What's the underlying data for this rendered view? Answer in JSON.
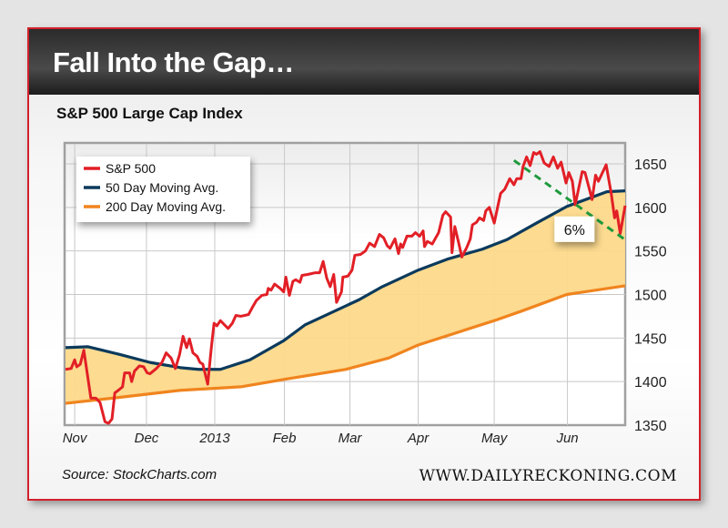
{
  "header": {
    "title": "Fall Into the Gap…"
  },
  "subtitle": "S&P 500 Large Cap Index",
  "footer": {
    "source": "Source: StockCharts.com",
    "brand": "WWW.DAILYRECKONING.COM"
  },
  "colors": {
    "sp500": "#e21f26",
    "ma50": "#0b3a5c",
    "ma200": "#f0841e",
    "gap_fill": "#fdd98a",
    "trend": "#1e9a3c"
  },
  "chart_data": {
    "type": "line",
    "title": "S&P 500 Large Cap Index",
    "xlabel": "",
    "ylabel": "",
    "x_units": "months since Nov 1, 2012",
    "xlim": [
      -0.13,
      7.82
    ],
    "ylim": [
      1350,
      1673
    ],
    "grid": true,
    "legend_position": "top-left",
    "x_ticks": [
      {
        "x": 0,
        "label": "Nov"
      },
      {
        "x": 1.02,
        "label": "Dec"
      },
      {
        "x": 1.99,
        "label": "2013"
      },
      {
        "x": 2.98,
        "label": "Feb"
      },
      {
        "x": 3.91,
        "label": "Mar"
      },
      {
        "x": 4.88,
        "label": "Apr"
      },
      {
        "x": 5.96,
        "label": "May"
      },
      {
        "x": 7,
        "label": "Jun"
      }
    ],
    "y_ticks": [
      1350,
      1400,
      1450,
      1500,
      1550,
      1600,
      1650
    ],
    "series": [
      {
        "name": "S&P 500",
        "color": "#e21f26",
        "points": [
          [
            -0.13,
            1414
          ],
          [
            -0.05,
            1415
          ],
          [
            0,
            1425
          ],
          [
            0.03,
            1417
          ],
          [
            0.08,
            1420
          ],
          [
            0.13,
            1436
          ],
          [
            0.23,
            1381
          ],
          [
            0.3,
            1381
          ],
          [
            0.36,
            1376
          ],
          [
            0.43,
            1354
          ],
          [
            0.48,
            1352
          ],
          [
            0.53,
            1357
          ],
          [
            0.57,
            1387
          ],
          [
            0.62,
            1390
          ],
          [
            0.68,
            1394
          ],
          [
            0.71,
            1410
          ],
          [
            0.78,
            1410
          ],
          [
            0.81,
            1400
          ],
          [
            0.85,
            1412
          ],
          [
            0.92,
            1418
          ],
          [
            0.98,
            1417
          ],
          [
            1.03,
            1410
          ],
          [
            1.07,
            1409
          ],
          [
            1.16,
            1415
          ],
          [
            1.24,
            1422
          ],
          [
            1.3,
            1433
          ],
          [
            1.37,
            1427
          ],
          [
            1.43,
            1415
          ],
          [
            1.49,
            1431
          ],
          [
            1.54,
            1452
          ],
          [
            1.59,
            1439
          ],
          [
            1.63,
            1449
          ],
          [
            1.68,
            1433
          ],
          [
            1.74,
            1429
          ],
          [
            1.78,
            1422
          ],
          [
            1.82,
            1420
          ],
          [
            1.89,
            1397
          ],
          [
            1.94,
            1438
          ],
          [
            1.98,
            1467
          ],
          [
            2.02,
            1464
          ],
          [
            2.07,
            1470
          ],
          [
            2.13,
            1465
          ],
          [
            2.18,
            1461
          ],
          [
            2.24,
            1467
          ],
          [
            2.29,
            1476
          ],
          [
            2.36,
            1475
          ],
          [
            2.47,
            1477
          ],
          [
            2.53,
            1486
          ],
          [
            2.58,
            1493
          ],
          [
            2.66,
            1499
          ],
          [
            2.73,
            1500
          ],
          [
            2.75,
            1507
          ],
          [
            2.79,
            1505
          ],
          [
            2.84,
            1512
          ],
          [
            2.92,
            1507
          ],
          [
            2.97,
            1503
          ],
          [
            3.0,
            1520
          ],
          [
            3.05,
            1499
          ],
          [
            3.1,
            1515
          ],
          [
            3.14,
            1517
          ],
          [
            3.2,
            1514
          ],
          [
            3.23,
            1522
          ],
          [
            3.31,
            1523
          ],
          [
            3.42,
            1525
          ],
          [
            3.48,
            1525
          ],
          [
            3.53,
            1538
          ],
          [
            3.58,
            1519
          ],
          [
            3.63,
            1509
          ],
          [
            3.68,
            1523
          ],
          [
            3.72,
            1491
          ],
          [
            3.79,
            1503
          ],
          [
            3.81,
            1520
          ],
          [
            3.88,
            1521
          ],
          [
            3.94,
            1528
          ],
          [
            3.98,
            1545
          ],
          [
            4.06,
            1546
          ],
          [
            4.13,
            1550
          ],
          [
            4.19,
            1559
          ],
          [
            4.26,
            1555
          ],
          [
            4.33,
            1569
          ],
          [
            4.39,
            1565
          ],
          [
            4.44,
            1556
          ],
          [
            4.48,
            1553
          ],
          [
            4.55,
            1564
          ],
          [
            4.6,
            1547
          ],
          [
            4.63,
            1558
          ],
          [
            4.66,
            1554
          ],
          [
            4.72,
            1567
          ],
          [
            4.79,
            1567
          ],
          [
            4.84,
            1571
          ],
          [
            4.9,
            1567
          ],
          [
            4.95,
            1573
          ],
          [
            4.97,
            1555
          ],
          [
            5.01,
            1561
          ],
          [
            5.08,
            1558
          ],
          [
            5.17,
            1571
          ],
          [
            5.23,
            1591
          ],
          [
            5.27,
            1595
          ],
          [
            5.34,
            1589
          ],
          [
            5.36,
            1548
          ],
          [
            5.4,
            1578
          ],
          [
            5.45,
            1561
          ],
          [
            5.5,
            1543
          ],
          [
            5.57,
            1554
          ],
          [
            5.62,
            1564
          ],
          [
            5.65,
            1580
          ],
          [
            5.71,
            1583
          ],
          [
            5.75,
            1588
          ],
          [
            5.81,
            1585
          ],
          [
            5.84,
            1596
          ],
          [
            5.89,
            1600
          ],
          [
            5.96,
            1582
          ],
          [
            6.01,
            1601
          ],
          [
            6.05,
            1616
          ],
          [
            6.11,
            1621
          ],
          [
            6.18,
            1633
          ],
          [
            6.24,
            1626
          ],
          [
            6.28,
            1633
          ],
          [
            6.34,
            1633
          ],
          [
            6.37,
            1647
          ],
          [
            6.42,
            1658
          ],
          [
            6.47,
            1648
          ],
          [
            6.52,
            1663
          ],
          [
            6.56,
            1661
          ],
          [
            6.61,
            1664
          ],
          [
            6.67,
            1651
          ],
          [
            6.74,
            1647
          ],
          [
            6.8,
            1658
          ],
          [
            6.86,
            1645
          ],
          [
            6.91,
            1652
          ],
          [
            6.98,
            1628
          ],
          [
            7.02,
            1640
          ],
          [
            7.07,
            1630
          ],
          [
            7.11,
            1603
          ],
          [
            7.21,
            1641
          ],
          [
            7.25,
            1640
          ],
          [
            7.35,
            1609
          ],
          [
            7.4,
            1637
          ],
          [
            7.44,
            1630
          ],
          [
            7.55,
            1649
          ],
          [
            7.62,
            1617
          ],
          [
            7.67,
            1588
          ],
          [
            7.7,
            1596
          ],
          [
            7.75,
            1570
          ],
          [
            7.82,
            1602
          ]
        ]
      },
      {
        "name": "50 Day Moving Avg.",
        "color": "#0b3a5c",
        "points": [
          [
            -0.13,
            1439
          ],
          [
            0.19,
            1440
          ],
          [
            0.65,
            1431
          ],
          [
            1.07,
            1422
          ],
          [
            1.5,
            1416
          ],
          [
            1.76,
            1414
          ],
          [
            2.07,
            1414
          ],
          [
            2.49,
            1425
          ],
          [
            2.97,
            1447
          ],
          [
            3.27,
            1465
          ],
          [
            4.04,
            1494
          ],
          [
            4.37,
            1509
          ],
          [
            4.88,
            1528
          ],
          [
            5.31,
            1541
          ],
          [
            5.79,
            1552
          ],
          [
            6.14,
            1563
          ],
          [
            6.56,
            1582
          ],
          [
            6.99,
            1601
          ],
          [
            7.56,
            1618
          ],
          [
            7.82,
            1619
          ]
        ]
      },
      {
        "name": "200 Day Moving Avg.",
        "color": "#f0841e",
        "points": [
          [
            -0.13,
            1375
          ],
          [
            0.65,
            1382
          ],
          [
            1.5,
            1390
          ],
          [
            2.36,
            1394
          ],
          [
            3.01,
            1403
          ],
          [
            3.85,
            1414
          ],
          [
            4.46,
            1427
          ],
          [
            4.88,
            1442
          ],
          [
            5.96,
            1470
          ],
          [
            6.35,
            1481
          ],
          [
            6.99,
            1500
          ],
          [
            7.82,
            1510
          ]
        ]
      }
    ],
    "annotations": [
      {
        "type": "dashed-trendline",
        "color": "#1e9a3c",
        "from": [
          6.24,
          1654
        ],
        "to": [
          7.8,
          1564
        ]
      },
      {
        "type": "label",
        "text": "6%",
        "at": [
          7.1,
          1575
        ]
      }
    ]
  }
}
